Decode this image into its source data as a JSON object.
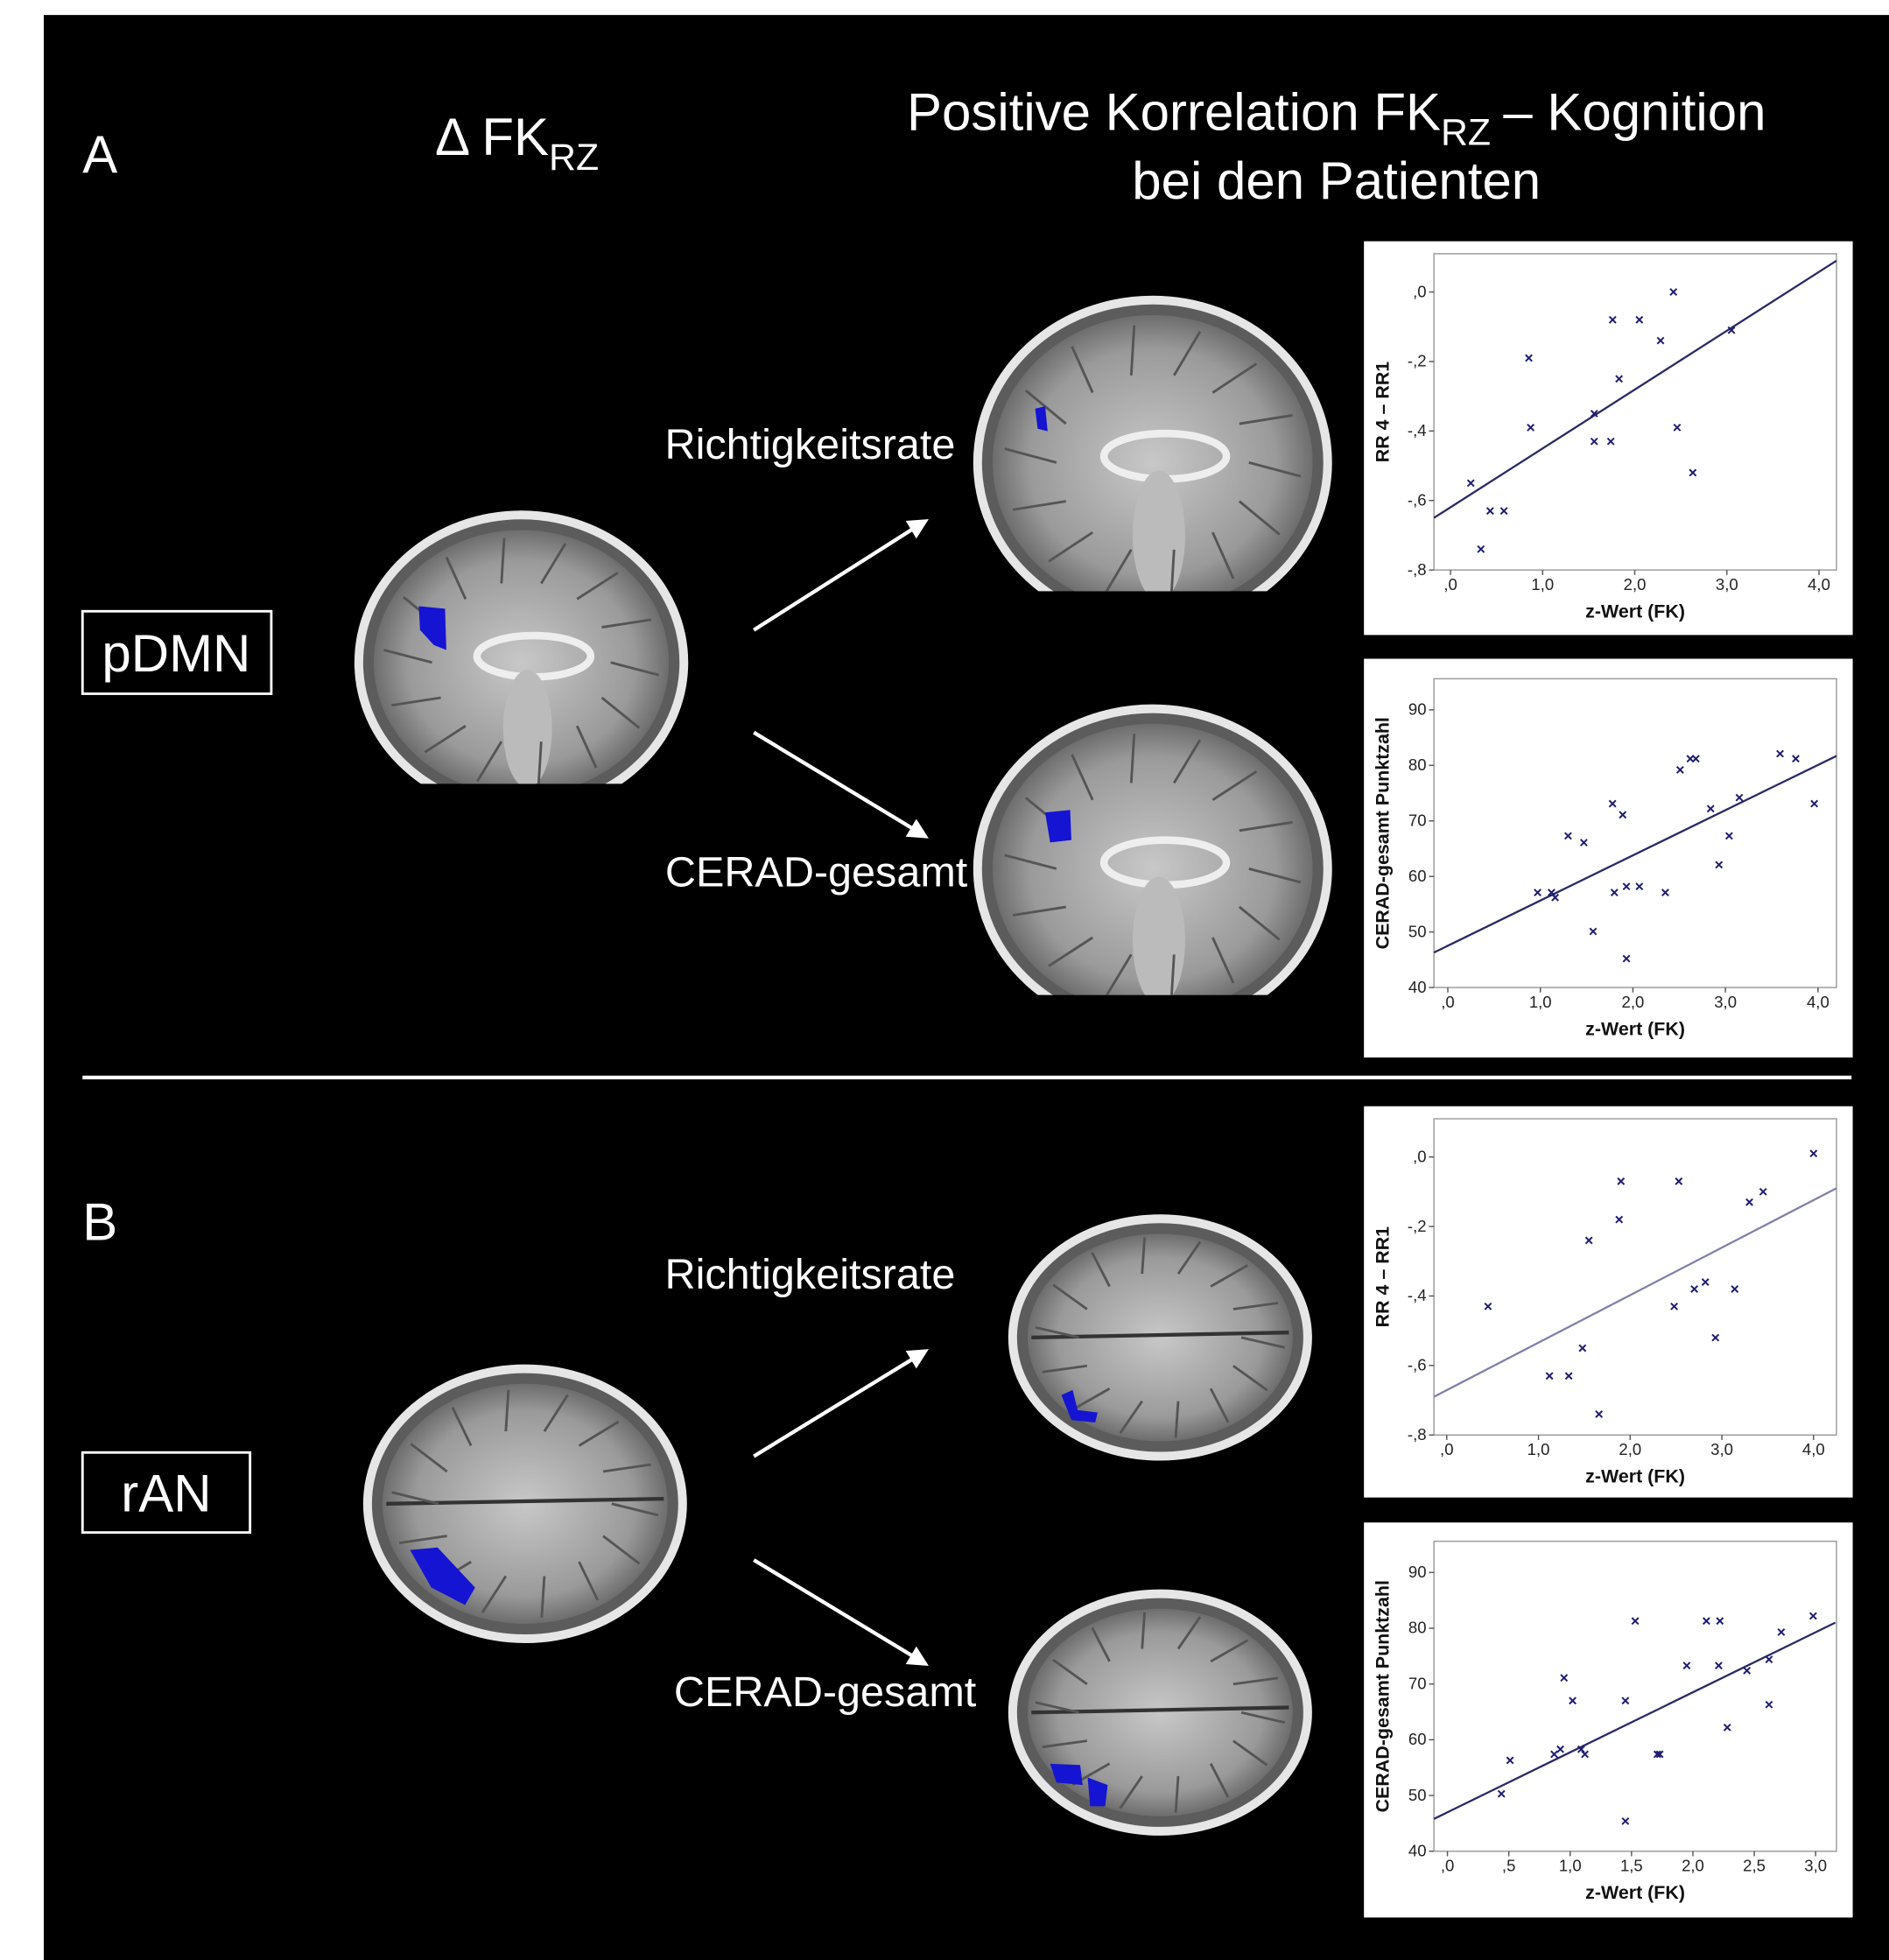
{
  "panel_a": {
    "letter": "A",
    "network": "pDMN"
  },
  "panel_b": {
    "letter": "B",
    "network": "rAN"
  },
  "column_heading": {
    "main": "Δ FK",
    "sub": "RZ"
  },
  "title": {
    "line1_start": "Positive Korrelation FK",
    "line1_sub": "RZ",
    "line1_end": "– Kognition",
    "line2": "bei den Patienten"
  },
  "arrow_labels": [
    "Richtigkeitsrate",
    "CERAD-gesamt",
    "Richtigkeitsrate",
    "CERAD-gesamt"
  ],
  "chart_data": [
    {
      "type": "scatter",
      "x_label": "z-Wert (FK)",
      "y_label": "RR 4 – RR1",
      "color": "#1e1e72",
      "x": [
        0.22,
        0.33,
        0.43,
        0.58,
        0.85,
        0.87,
        1.56,
        1.56,
        1.74,
        1.76,
        1.83,
        2.05,
        2.28,
        2.42,
        2.46,
        2.63,
        3.05
      ],
      "values": [
        -0.55,
        -0.74,
        -0.63,
        -0.63,
        -0.19,
        -0.39,
        -0.35,
        -0.43,
        -0.43,
        -0.08,
        -0.25,
        -0.08,
        -0.14,
        0.0,
        -0.39,
        -0.52,
        -0.11
      ],
      "fit_line": {
        "x": [
          -0.18,
          4.19
        ],
        "values": [
          -0.65,
          0.09
        ],
        "color": "#2a2a66"
      },
      "xlim": [
        -0.18,
        4.19
      ],
      "ylim": [
        -0.8,
        0.11
      ],
      "xticks": [
        {
          "value": 0,
          "label": ",0"
        },
        {
          "value": 1,
          "label": "1,0"
        },
        {
          "value": 2,
          "label": "2,0"
        },
        {
          "value": 3,
          "label": "3,0"
        },
        {
          "value": 4,
          "label": "4,0"
        }
      ],
      "yticks": [
        {
          "value": 0,
          "label": ",0"
        },
        {
          "value": -0.2,
          "label": "-,2"
        },
        {
          "value": -0.4,
          "label": "-,4"
        },
        {
          "value": -0.6,
          "label": "-,6"
        },
        {
          "value": -0.8,
          "label": "-,8"
        }
      ]
    },
    {
      "type": "scatter",
      "x_label": "z-Wert (FK)",
      "y_label": "CERAD-gesamt Punktzahl",
      "color": "#1e1e72",
      "x": [
        0.97,
        1.12,
        1.16,
        1.3,
        1.47,
        1.57,
        1.78,
        1.8,
        1.89,
        1.93,
        1.93,
        2.07,
        2.35,
        2.51,
        2.62,
        2.68,
        2.84,
        2.93,
        3.04,
        3.15,
        3.59,
        3.76,
        3.96
      ],
      "values": [
        57.1,
        57.1,
        56.2,
        67.3,
        66.1,
        50.1,
        73.1,
        57.1,
        71.1,
        58.2,
        45.2,
        58.2,
        57.1,
        79.2,
        81.2,
        81.2,
        72.2,
        62.1,
        67.3,
        74.2,
        82.1,
        81.2,
        73.1
      ],
      "fit_line": {
        "x": [
          -0.15,
          4.2
        ],
        "values": [
          46.3,
          81.7
        ],
        "color": "#2a2a66"
      },
      "xlim": [
        -0.15,
        4.2
      ],
      "ylim": [
        40,
        95.6
      ],
      "xticks": [
        {
          "value": 0,
          "label": ",0"
        },
        {
          "value": 1,
          "label": "1,0"
        },
        {
          "value": 2,
          "label": "2,0"
        },
        {
          "value": 3,
          "label": "3,0"
        },
        {
          "value": 4,
          "label": "4,0"
        }
      ],
      "yticks": [
        40,
        50,
        60,
        70,
        80,
        90
      ]
    },
    {
      "type": "scatter",
      "x_label": "z-Wert (FK)",
      "y_label": "RR 4 – RR1",
      "color": "#1e1e72",
      "x": [
        0.45,
        1.12,
        1.33,
        1.48,
        1.55,
        1.66,
        1.88,
        1.9,
        2.48,
        2.53,
        2.7,
        2.82,
        2.93,
        3.14,
        3.3,
        3.45,
        4.0
      ],
      "values": [
        -0.43,
        -0.63,
        -0.63,
        -0.55,
        -0.24,
        -0.74,
        -0.18,
        -0.07,
        -0.43,
        -0.07,
        -0.38,
        -0.36,
        -0.52,
        -0.38,
        -0.13,
        -0.1,
        0.01
      ],
      "fit_line": {
        "x": [
          -0.14,
          4.25
        ],
        "values": [
          -0.69,
          -0.09
        ],
        "color": "#8080aa"
      },
      "xlim": [
        -0.14,
        4.25
      ],
      "ylim": [
        -0.8,
        0.11
      ],
      "xticks": [
        {
          "value": 0,
          "label": ",0"
        },
        {
          "value": 1,
          "label": "1,0"
        },
        {
          "value": 2,
          "label": "2,0"
        },
        {
          "value": 3,
          "label": "3,0"
        },
        {
          "value": 4,
          "label": "4,0"
        }
      ],
      "yticks": [
        {
          "value": 0,
          "label": ",0"
        },
        {
          "value": -0.2,
          "label": "-,2"
        },
        {
          "value": -0.4,
          "label": "-,4"
        },
        {
          "value": -0.6,
          "label": "-,6"
        },
        {
          "value": -0.8,
          "label": "-,8"
        }
      ]
    },
    {
      "type": "scatter",
      "x_label": "z-Wert (FK)",
      "y_label": "CERAD-gesamt Punktzahl",
      "color": "#1e1e72",
      "x": [
        0.44,
        0.51,
        0.87,
        0.92,
        0.95,
        1.02,
        1.09,
        1.12,
        1.45,
        1.45,
        1.53,
        1.71,
        1.73,
        1.95,
        2.11,
        2.22,
        2.21,
        2.28,
        2.44,
        2.62,
        2.62,
        2.72,
        2.98
      ],
      "values": [
        50.3,
        56.3,
        57.4,
        58.3,
        71.1,
        67.0,
        58.3,
        57.4,
        67.0,
        45.4,
        81.3,
        57.4,
        57.4,
        73.3,
        81.3,
        81.3,
        73.3,
        62.2,
        72.4,
        74.4,
        66.3,
        79.3,
        82.2
      ],
      "fit_line": {
        "x": [
          -0.11,
          3.16
        ],
        "values": [
          45.8,
          81.0
        ],
        "color": "#2a2a66"
      },
      "xlim": [
        -0.11,
        3.17
      ],
      "ylim": [
        40,
        95.6
      ],
      "xticks": [
        {
          "value": 0,
          "label": ",0"
        },
        {
          "value": 0.5,
          "label": ",5"
        },
        {
          "value": 1,
          "label": "1,0"
        },
        {
          "value": 1.5,
          "label": "1,5"
        },
        {
          "value": 2,
          "label": "2,0"
        },
        {
          "value": 2.5,
          "label": "2,5"
        },
        {
          "value": 3,
          "label": "3,0"
        }
      ],
      "yticks": [
        40,
        50,
        60,
        70,
        80,
        90
      ]
    }
  ]
}
